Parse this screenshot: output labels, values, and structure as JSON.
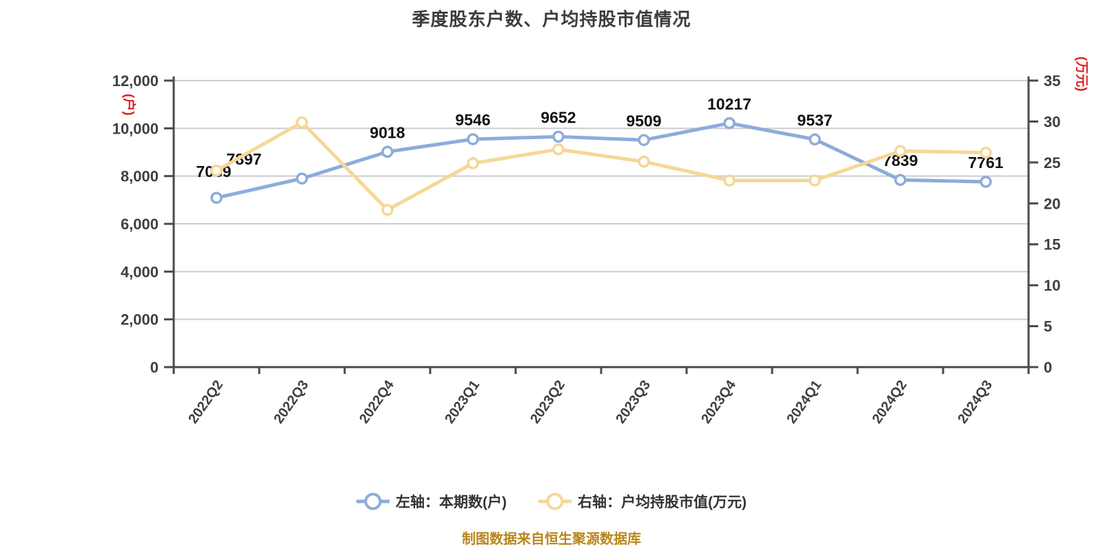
{
  "title": "季度股东户数、户均持股市值情况",
  "source_note": "制图数据来自恒生聚源数据库",
  "legend": [
    {
      "label": "左轴：本期数(户)",
      "color": "#8cacdb"
    },
    {
      "label": "右轴：户均持股市值(万元)",
      "color": "#f6d795"
    }
  ],
  "colors": {
    "holders_line": "#8cacdb",
    "value_line": "#f6d795",
    "marker_fill": "#ffffff",
    "grid_line": "#cccccc",
    "axis_line": "#4a4a4a",
    "axis_text": "#3f3f3f",
    "point_label": "#111111",
    "axis_unit_red": "#e01f1f",
    "title_text": "#3c3c3c",
    "source_text": "#b8861b"
  },
  "chart_data": {
    "type": "line",
    "title": "季度股东户数、户均持股市值情况",
    "categories": [
      "2022Q2",
      "2022Q3",
      "2022Q4",
      "2023Q1",
      "2023Q2",
      "2023Q3",
      "2023Q4",
      "2024Q1",
      "2024Q2",
      "2024Q3"
    ],
    "series": [
      {
        "name": "左轴：本期数(户)",
        "axis": "left",
        "color": "#8cacdb",
        "values": [
          7089,
          7897,
          9018,
          9546,
          9652,
          9509,
          10217,
          9537,
          7839,
          7761
        ],
        "point_labels": [
          "7089",
          "7897",
          "9018",
          "9546",
          "9652",
          "9509",
          "10217",
          "9537",
          "7839",
          "7761"
        ],
        "label_offsets": {
          "0": [
            -4,
            -30
          ],
          "1": [
            -84,
            -20
          ]
        }
      },
      {
        "name": "右轴：户均持股市值(万元)",
        "axis": "right",
        "color": "#f6d795",
        "values": [
          24.0,
          29.9,
          19.2,
          24.9,
          26.6,
          25.1,
          22.8,
          22.8,
          26.4,
          26.2
        ],
        "point_labels": []
      }
    ],
    "left_axis": {
      "min": 0,
      "max": 12000,
      "step": 2000,
      "tick_labels": [
        "0",
        "2,000",
        "4,000",
        "6,000",
        "8,000",
        "10,000",
        "12,000"
      ],
      "unit": "(户)"
    },
    "right_axis": {
      "min": 0,
      "max": 35,
      "step": 5,
      "tick_labels": [
        "0",
        "5",
        "10",
        "15",
        "20",
        "25",
        "30",
        "35"
      ],
      "unit": "(万元)"
    },
    "grid": "horizontal gridlines only",
    "legend_position": "bottom"
  }
}
